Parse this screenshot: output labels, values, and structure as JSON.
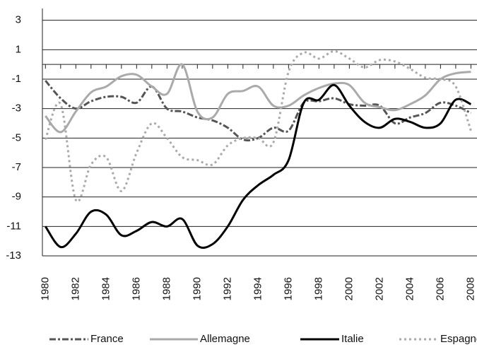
{
  "chart_data": {
    "type": "line",
    "x": [
      1980,
      1981,
      1982,
      1983,
      1984,
      1985,
      1986,
      1987,
      1988,
      1989,
      1990,
      1991,
      1992,
      1993,
      1994,
      1995,
      1996,
      1997,
      1998,
      1999,
      2000,
      2001,
      2002,
      2003,
      2004,
      2005,
      2006,
      2007,
      2008
    ],
    "series": [
      {
        "name": "France",
        "color": "#555555",
        "dash": "dashdot",
        "values": [
          -1.1,
          -2.3,
          -3.0,
          -2.5,
          -2.2,
          -2.2,
          -2.6,
          -1.5,
          -3.0,
          -3.2,
          -3.6,
          -3.8,
          -4.3,
          -5.1,
          -5.0,
          -4.3,
          -4.5,
          -2.6,
          -2.5,
          -2.3,
          -2.7,
          -2.8,
          -2.8,
          -4.0,
          -3.6,
          -3.3,
          -2.6,
          -2.8,
          -3.3
        ]
      },
      {
        "name": "Allemagne",
        "color": "#aaaaaa",
        "dash": "solid",
        "values": [
          -3.5,
          -4.6,
          -3.2,
          -1.9,
          -1.5,
          -0.8,
          -0.7,
          -1.5,
          -2.0,
          0.0,
          -3.2,
          -3.6,
          -2.0,
          -1.8,
          -1.5,
          -2.8,
          -2.8,
          -2.1,
          -1.6,
          -1.3,
          -1.4,
          -2.6,
          -2.9,
          -3.1,
          -2.7,
          -2.1,
          -1.0,
          -0.6,
          -0.5
        ]
      },
      {
        "name": "Italie",
        "color": "#000000",
        "dash": "solid",
        "values": [
          -11.0,
          -12.4,
          -11.5,
          -10.0,
          -10.2,
          -11.6,
          -11.3,
          -10.7,
          -11.0,
          -10.5,
          -12.3,
          -12.2,
          -11.0,
          -9.2,
          -8.2,
          -7.5,
          -6.5,
          -2.6,
          -2.4,
          -1.4,
          -2.8,
          -3.9,
          -4.3,
          -3.7,
          -3.9,
          -4.3,
          -4.0,
          -2.4,
          -2.7
        ]
      },
      {
        "name": "Espagne",
        "color": "#aaaaaa",
        "dash": "dotted",
        "values": [
          -5.1,
          -2.7,
          -9.2,
          -6.8,
          -6.3,
          -8.6,
          -6.0,
          -4.0,
          -5.0,
          -6.3,
          -6.5,
          -6.8,
          -5.5,
          -5.0,
          -5.0,
          -5.3,
          -0.5,
          0.8,
          0.4,
          0.9,
          0.4,
          -0.2,
          0.3,
          0.2,
          -0.3,
          -0.9,
          -1.0,
          -1.5,
          -4.5
        ]
      }
    ],
    "xlim": [
      1979.8,
      2008.4
    ],
    "xticks": [
      1980,
      1982,
      1984,
      1986,
      1988,
      1990,
      1992,
      1994,
      1996,
      1998,
      2000,
      2002,
      2004,
      2006,
      2008
    ],
    "minor_xticks": [
      1981,
      1983,
      1985,
      1987,
      1989,
      1991,
      1993,
      1995,
      1997,
      1999,
      2001,
      2003,
      2005,
      2007
    ],
    "ylim": [
      -13,
      3.8
    ],
    "yticks": [
      -13,
      -11,
      -9,
      -7,
      -5,
      -3,
      -1,
      1,
      3
    ],
    "grid": true,
    "legend": "bottom"
  }
}
